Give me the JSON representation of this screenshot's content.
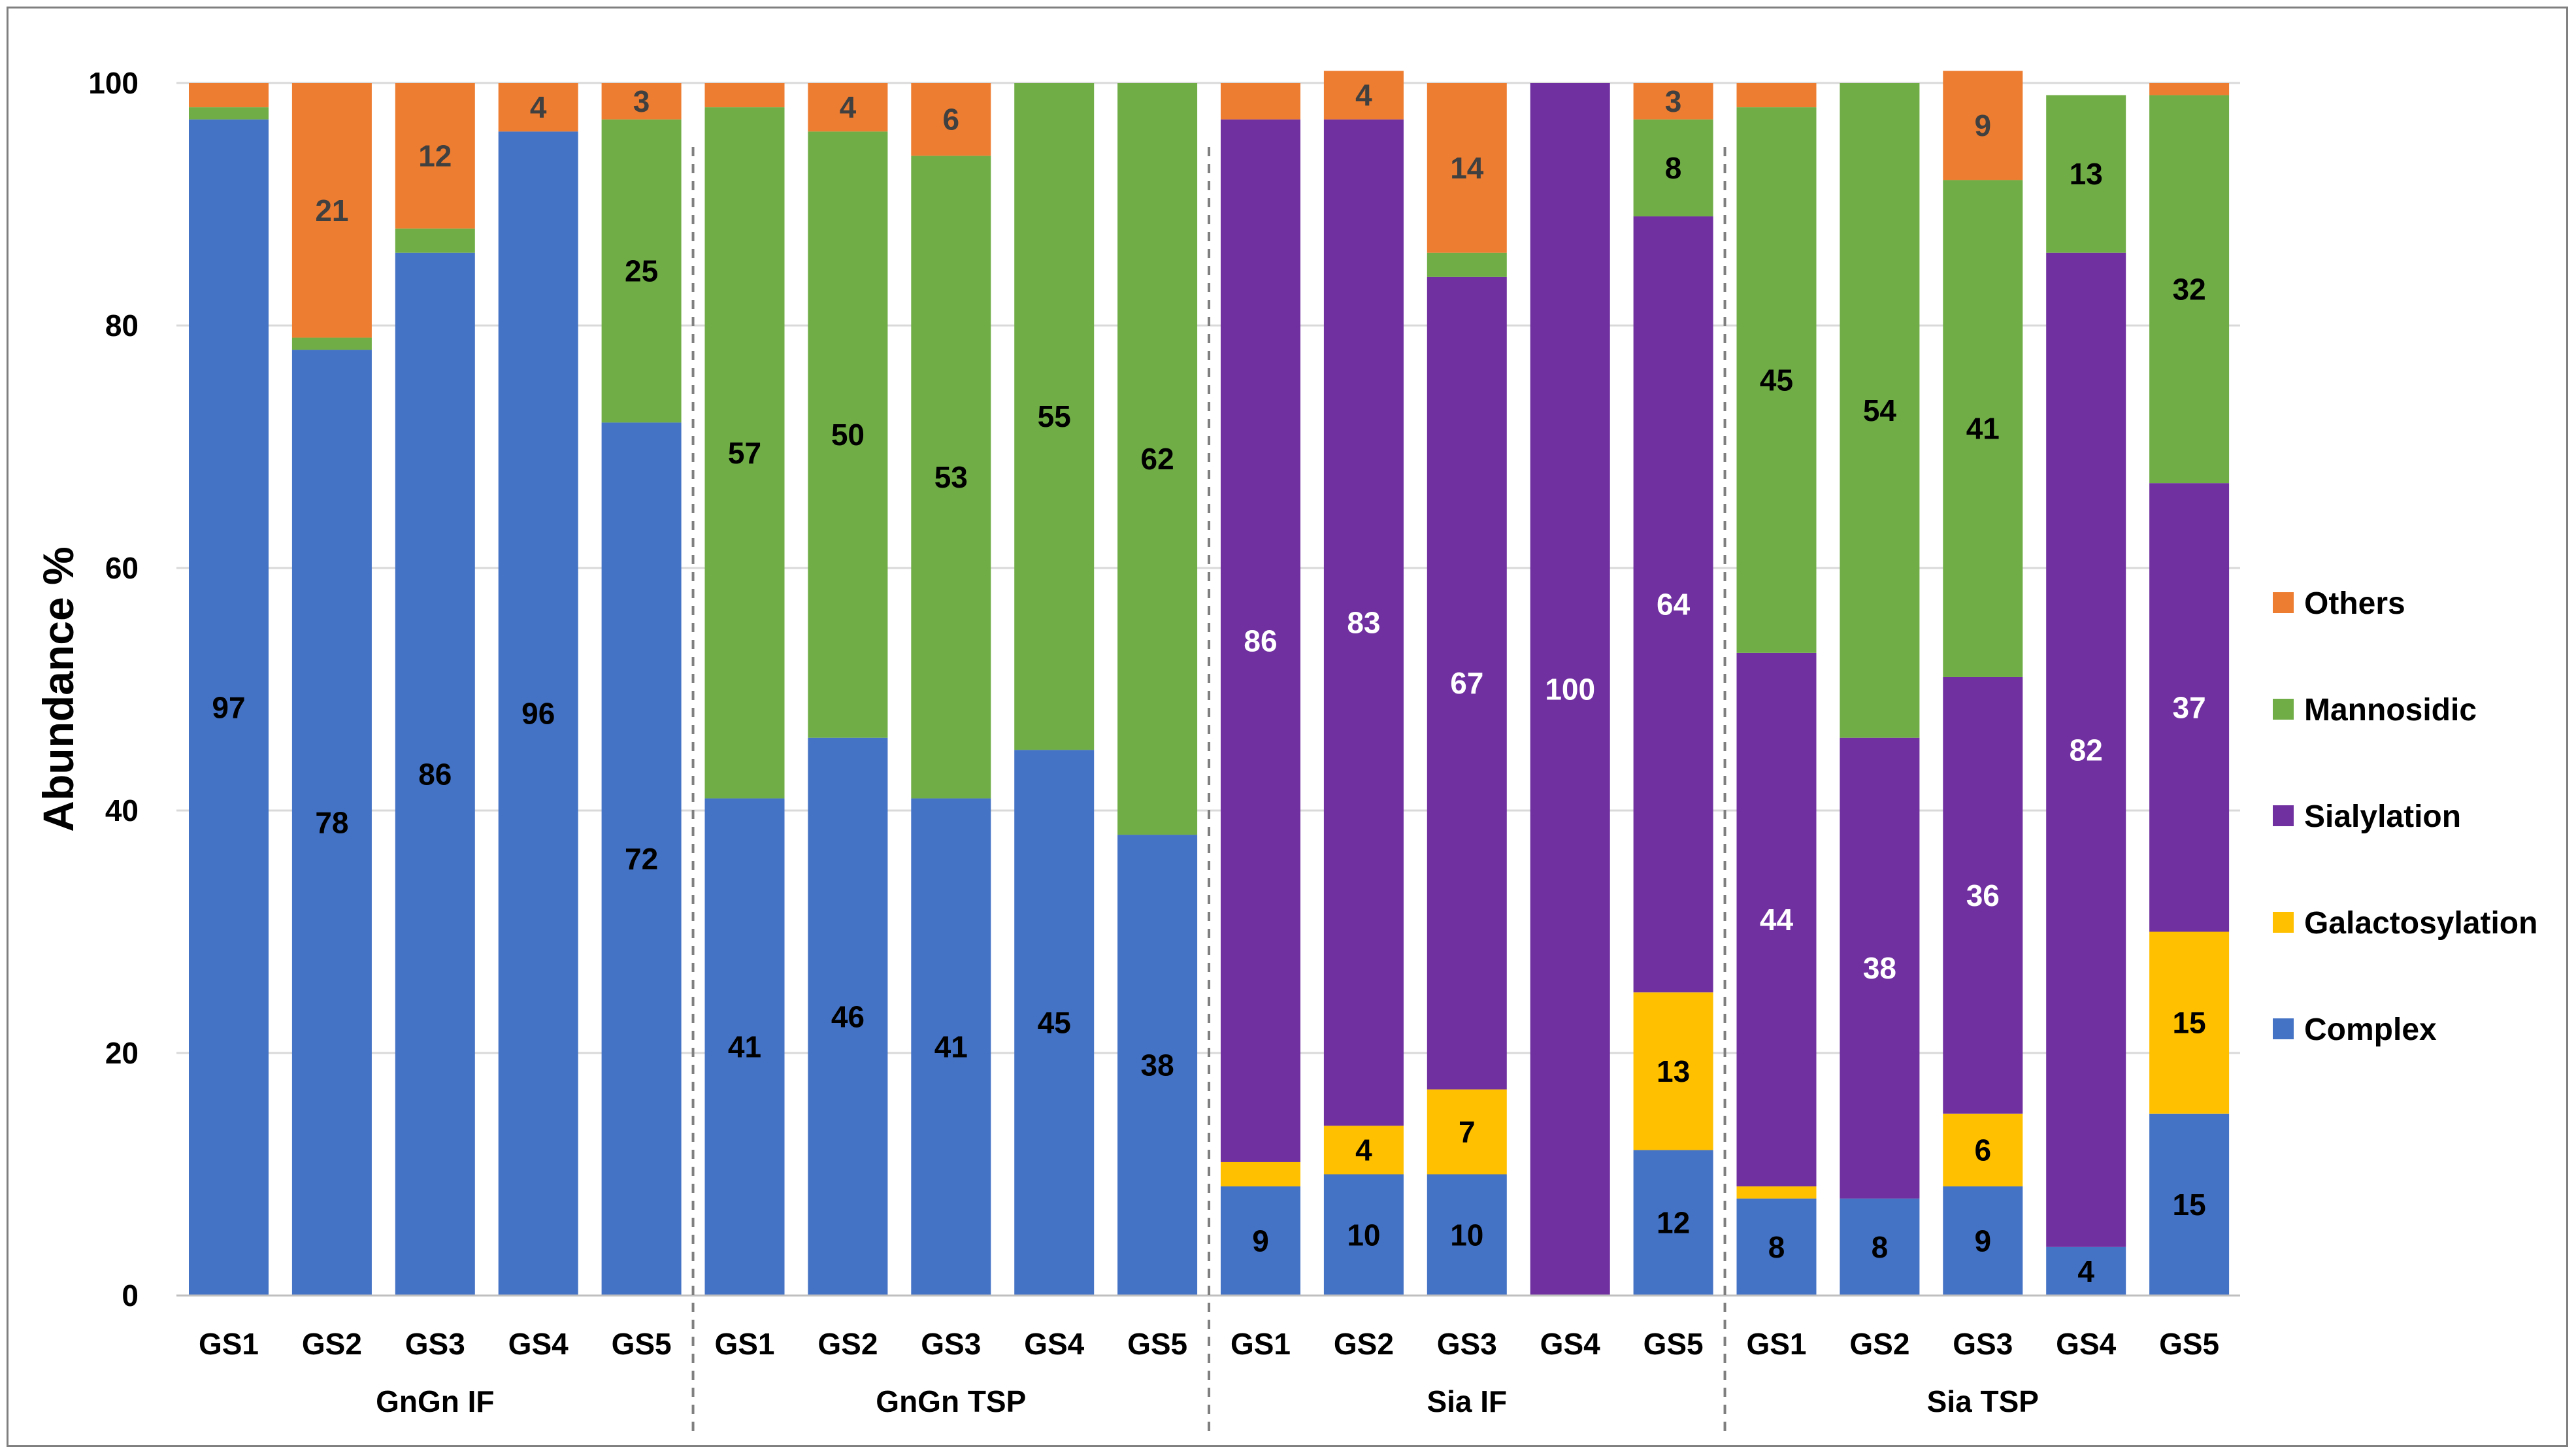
{
  "chart_data": {
    "type": "bar",
    "stacked": true,
    "ylabel": "Abundance %",
    "ylim": [
      0,
      100
    ],
    "yticks": [
      0,
      20,
      40,
      60,
      80,
      100
    ],
    "grid": true,
    "legend_position": "right",
    "groups": [
      {
        "name": "GnGn IF",
        "categories": [
          "GS1",
          "GS2",
          "GS3",
          "GS4",
          "GS5"
        ]
      },
      {
        "name": "GnGn TSP",
        "categories": [
          "GS1",
          "GS2",
          "GS3",
          "GS4",
          "GS5"
        ]
      },
      {
        "name": "Sia IF",
        "categories": [
          "GS1",
          "GS2",
          "GS3",
          "GS4",
          "GS5"
        ]
      },
      {
        "name": "Sia TSP",
        "categories": [
          "GS1",
          "GS2",
          "GS3",
          "GS4",
          "GS5"
        ]
      }
    ],
    "series": [
      {
        "name": "Complex",
        "color": "#4472c4",
        "label_color": "#000000",
        "values": [
          97,
          78,
          86,
          96,
          72,
          41,
          46,
          41,
          45,
          38,
          9,
          10,
          10,
          0,
          12,
          8,
          8,
          9,
          4,
          15
        ],
        "labels": [
          "97",
          "78",
          "86",
          "96",
          "72",
          "41",
          "46",
          "41",
          "45",
          "38",
          "9",
          "10",
          "10",
          "",
          "12",
          "8",
          "8",
          "9",
          "4",
          "15"
        ]
      },
      {
        "name": "Galactosylation",
        "color": "#ffc000",
        "label_color": "#000000",
        "values": [
          0,
          0,
          0,
          0,
          0,
          0,
          0,
          0,
          0,
          0,
          2,
          4,
          7,
          0,
          13,
          1,
          0,
          6,
          0,
          15
        ],
        "labels": [
          "",
          "",
          "",
          "",
          "",
          "",
          "",
          "",
          "",
          "",
          "",
          "4",
          "7",
          "",
          "13",
          "",
          "",
          "6",
          "",
          "15"
        ]
      },
      {
        "name": "Sialylation",
        "color": "#7030a0",
        "label_color": "#ffffff",
        "values": [
          0,
          0,
          0,
          0,
          0,
          0,
          0,
          0,
          0,
          0,
          86,
          83,
          67,
          100,
          64,
          44,
          38,
          36,
          82,
          37
        ],
        "labels": [
          "",
          "",
          "",
          "",
          "",
          "",
          "",
          "",
          "",
          "",
          "86",
          "83",
          "67",
          "100",
          "64",
          "44",
          "38",
          "36",
          "82",
          "37"
        ]
      },
      {
        "name": "Mannosidic",
        "color": "#70ad47",
        "label_color": "#000000",
        "values": [
          1,
          1,
          2,
          0,
          25,
          57,
          50,
          53,
          55,
          62,
          0,
          0,
          2,
          0,
          8,
          45,
          54,
          41,
          13,
          32
        ],
        "labels": [
          "",
          "",
          "",
          "",
          "25",
          "57",
          "50",
          "53",
          "55",
          "62",
          "",
          "",
          "",
          "",
          "8",
          "45",
          "54",
          "41",
          "13",
          "32"
        ]
      },
      {
        "name": "Others",
        "color": "#ed7d31",
        "label_color": "#404040",
        "values": [
          2,
          21,
          12,
          4,
          3,
          2,
          4,
          6,
          0,
          0,
          3,
          4,
          14,
          0,
          3,
          2,
          0,
          9,
          0,
          1
        ],
        "labels": [
          "",
          "21",
          "12",
          "4",
          "3",
          "",
          "4",
          "6",
          "",
          "",
          "",
          "4",
          "14",
          "",
          "3",
          "",
          "",
          "9",
          "",
          ""
        ]
      }
    ],
    "legend_order": [
      "Others",
      "Mannosidic",
      "Sialylation",
      "Galactosylation",
      "Complex"
    ]
  }
}
